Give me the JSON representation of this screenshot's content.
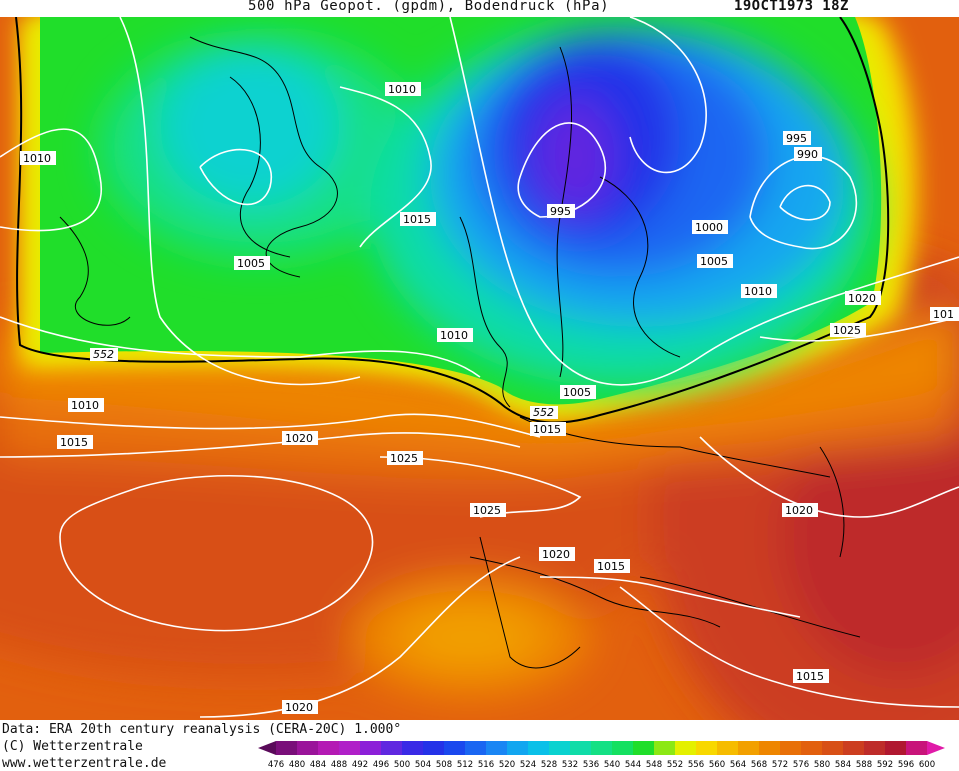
{
  "header": {
    "title": "500 hPa Geopot. (gpdm), Bodendruck (hPa)",
    "datetime": "19OCT1973 18Z"
  },
  "footer": {
    "data_source": "Data: ERA 20th century reanalysis (CERA-20C) 1.000°",
    "copyright": "(C) Wetterzentrale",
    "website": "www.wetterzentrale.de"
  },
  "legend": {
    "levels": [
      "476",
      "480",
      "484",
      "488",
      "492",
      "496",
      "500",
      "504",
      "508",
      "512",
      "516",
      "520",
      "524",
      "528",
      "532",
      "536",
      "540",
      "544",
      "548",
      "552",
      "556",
      "560",
      "564",
      "568",
      "572",
      "576",
      "580",
      "584",
      "588",
      "592",
      "596",
      "600"
    ],
    "colors": [
      "#5a0a5a",
      "#7a0f7a",
      "#9a149a",
      "#b41ab4",
      "#b020c8",
      "#8c20d8",
      "#6028e0",
      "#3a2ae6",
      "#2432e8",
      "#1a48ee",
      "#1a66f2",
      "#1a86f4",
      "#12a6f0",
      "#0ac0e8",
      "#0ad2d0",
      "#10dca8",
      "#14e084",
      "#14e060",
      "#20de2a",
      "#8ce814",
      "#e4f000",
      "#f8d800",
      "#f6bc00",
      "#f2a000",
      "#ee8600",
      "#e87008",
      "#e2600e",
      "#d85016",
      "#cc3e20",
      "#be2c2a",
      "#b01830",
      "#c8147a",
      "#e01aa8"
    ]
  },
  "map": {
    "isobar_labels": [
      "1010",
      "1010",
      "1015",
      "1005",
      "1010",
      "995",
      "1000",
      "995",
      "990",
      "1005",
      "1010",
      "1020",
      "1025",
      "1010",
      "1015",
      "1020",
      "1025",
      "1015",
      "1005",
      "1025",
      "1020",
      "1015",
      "1020",
      "1015",
      "1020",
      "101"
    ],
    "height_contour_labels": [
      "552",
      "552"
    ]
  },
  "colors": {
    "contour_line": "#ffffff",
    "height_552_line": "#000000",
    "coastline": "#000000"
  }
}
